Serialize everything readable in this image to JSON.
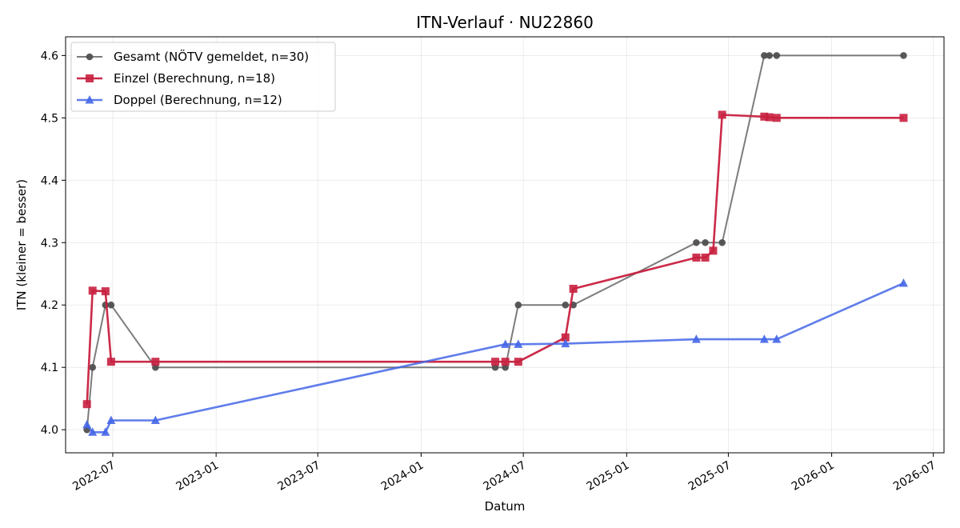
{
  "chart_data": {
    "type": "line",
    "title": "ITN-Verlauf · NU22860",
    "xlabel": "Datum",
    "ylabel": "ITN  (kleiner = besser)",
    "x_type": "date",
    "xlim": [
      "2022-04-08",
      "2026-07-20"
    ],
    "ylim": [
      3.963,
      4.63
    ],
    "x_ticks": [
      "2022-07-01",
      "2023-01-01",
      "2023-07-01",
      "2024-01-01",
      "2024-07-01",
      "2025-01-01",
      "2025-07-01",
      "2026-01-01",
      "2026-07-01"
    ],
    "x_tick_labels": [
      "2022-07",
      "2023-01",
      "2023-07",
      "2024-01",
      "2024-07",
      "2025-01",
      "2025-07",
      "2026-01",
      "2026-07"
    ],
    "y_ticks": [
      4.0,
      4.1,
      4.2,
      4.3,
      4.4,
      4.5,
      4.6
    ],
    "y_tick_labels": [
      "4.0",
      "4.1",
      "4.2",
      "4.3",
      "4.4",
      "4.5",
      "4.6"
    ],
    "grid": true,
    "legend_position": "top-left",
    "series": [
      {
        "name": "Gesamt (NÖTV gemeldet, n=30)",
        "color": "#505050",
        "marker": "circle",
        "points": [
          {
            "x": "2022-05-16",
            "y": 4.0
          },
          {
            "x": "2022-05-26",
            "y": 4.1
          },
          {
            "x": "2022-06-18",
            "y": 4.2
          },
          {
            "x": "2022-06-28",
            "y": 4.2
          },
          {
            "x": "2022-09-15",
            "y": 4.1
          },
          {
            "x": "2024-05-12",
            "y": 4.1
          },
          {
            "x": "2024-05-30",
            "y": 4.1
          },
          {
            "x": "2024-06-22",
            "y": 4.2
          },
          {
            "x": "2024-09-14",
            "y": 4.2
          },
          {
            "x": "2024-09-28",
            "y": 4.2
          },
          {
            "x": "2025-05-05",
            "y": 4.3
          },
          {
            "x": "2025-05-21",
            "y": 4.3
          },
          {
            "x": "2025-06-20",
            "y": 4.3
          },
          {
            "x": "2025-09-03",
            "y": 4.6
          },
          {
            "x": "2025-09-12",
            "y": 4.6
          },
          {
            "x": "2025-09-25",
            "y": 4.6
          },
          {
            "x": "2026-05-09",
            "y": 4.6
          }
        ]
      },
      {
        "name": "Einzel (Berechnung, n=18)",
        "color": "#c8203f",
        "marker": "square",
        "points": [
          {
            "x": "2022-05-16",
            "y": 4.041
          },
          {
            "x": "2022-05-26",
            "y": 4.223
          },
          {
            "x": "2022-06-18",
            "y": 4.222
          },
          {
            "x": "2022-06-28",
            "y": 4.109
          },
          {
            "x": "2022-09-15",
            "y": 4.109
          },
          {
            "x": "2024-05-12",
            "y": 4.109
          },
          {
            "x": "2024-05-30",
            "y": 4.109
          },
          {
            "x": "2024-06-22",
            "y": 4.109
          },
          {
            "x": "2024-09-14",
            "y": 4.148
          },
          {
            "x": "2024-09-28",
            "y": 4.226
          },
          {
            "x": "2025-05-05",
            "y": 4.276
          },
          {
            "x": "2025-05-21",
            "y": 4.276
          },
          {
            "x": "2025-06-04",
            "y": 4.287
          },
          {
            "x": "2025-06-20",
            "y": 4.505
          },
          {
            "x": "2025-09-03",
            "y": 4.502
          },
          {
            "x": "2025-09-12",
            "y": 4.501
          },
          {
            "x": "2025-09-25",
            "y": 4.5
          },
          {
            "x": "2026-05-09",
            "y": 4.5
          }
        ]
      },
      {
        "name": "Doppel (Berechnung, n=12)",
        "color": "#4466e8",
        "marker": "triangle",
        "points": [
          {
            "x": "2022-05-16",
            "y": 4.008
          },
          {
            "x": "2022-05-26",
            "y": 3.996
          },
          {
            "x": "2022-06-18",
            "y": 3.996
          },
          {
            "x": "2022-06-28",
            "y": 4.015
          },
          {
            "x": "2022-09-15",
            "y": 4.015
          },
          {
            "x": "2024-05-30",
            "y": 4.137
          },
          {
            "x": "2024-06-22",
            "y": 4.137
          },
          {
            "x": "2024-09-14",
            "y": 4.138
          },
          {
            "x": "2025-05-05",
            "y": 4.145
          },
          {
            "x": "2025-09-03",
            "y": 4.145
          },
          {
            "x": "2025-09-25",
            "y": 4.145
          },
          {
            "x": "2026-05-09",
            "y": 4.235
          }
        ]
      }
    ]
  }
}
